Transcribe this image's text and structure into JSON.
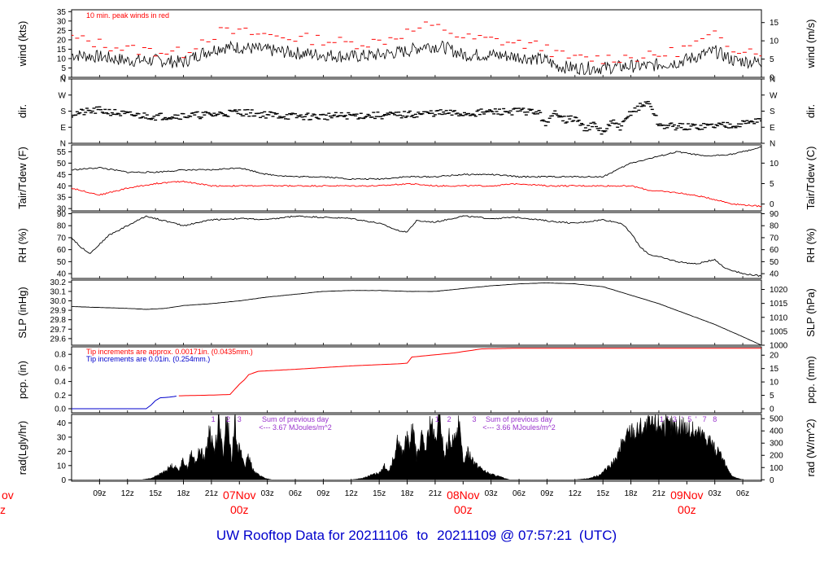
{
  "footer": {
    "prefix": "UW Rooftop Data for",
    "start": "20211106",
    "to_word": "to",
    "end": "20211109",
    "at_word": "@",
    "time": "07:57:21",
    "tz": "(UTC)"
  },
  "colors": {
    "frame": "#000000",
    "primary": "#000000",
    "red": "#ff0000",
    "blue": "#0000cc",
    "purple": "#9933cc"
  },
  "x_axis": {
    "tick_labels": [
      "09z",
      "12z",
      "15z",
      "18z",
      "21z",
      "03z",
      "06z",
      "09z",
      "12z",
      "15z",
      "18z",
      "21z",
      "03z",
      "06z",
      "09z",
      "12z",
      "15z",
      "18z",
      "21z",
      "03z",
      "06z"
    ],
    "tick_hours": [
      3,
      6,
      9,
      12,
      15,
      21,
      24,
      27,
      30,
      33,
      36,
      39,
      45,
      48,
      51,
      54,
      57,
      60,
      63,
      69,
      72
    ],
    "day_labels": [
      {
        "date": "07Nov",
        "z": "00z",
        "hour": 18
      },
      {
        "date": "08Nov",
        "z": "00z",
        "hour": 42
      },
      {
        "date": "09Nov",
        "z": "00z",
        "hour": 66
      }
    ],
    "left_day_partial": {
      "date": "ov",
      "z": "z"
    },
    "hour_range": [
      0,
      74
    ]
  },
  "chart_data": [
    {
      "type": "line",
      "id": "wind",
      "ylabel": "wind (kts)",
      "ylabel_right": "wind (m/s)",
      "annotation": "10 min. peak winds in red",
      "yticks_left": [
        0,
        5,
        10,
        15,
        20,
        25,
        30,
        35
      ],
      "yticks_right": [
        0,
        5,
        10,
        15
      ],
      "ylim": [
        0,
        36
      ],
      "right_scale": 0.514,
      "x_hours": [
        0,
        3,
        6,
        9,
        12,
        14,
        16,
        18,
        20,
        22,
        24,
        27,
        30,
        33,
        36,
        38,
        40,
        42,
        45,
        48,
        51,
        52,
        54,
        57,
        60,
        62,
        63,
        65,
        67,
        69,
        71,
        74
      ],
      "series": [
        {
          "name": "wind",
          "color": "#000000",
          "values": [
            12,
            11,
            9,
            9,
            8,
            13,
            16,
            16,
            15,
            14,
            13,
            12,
            11,
            12,
            14,
            17,
            16,
            12,
            12,
            11,
            9,
            6,
            5,
            5,
            6,
            6,
            7,
            8,
            11,
            14,
            9,
            8
          ]
        },
        {
          "name": "peak",
          "color": "#ff0000",
          "values": [
            21,
            18,
            15,
            14,
            13,
            20,
            24,
            24,
            23,
            22,
            21,
            20,
            18,
            19,
            24,
            27,
            26,
            21,
            20,
            18,
            16,
            12,
            10,
            10,
            11,
            11,
            12,
            14,
            18,
            22,
            16,
            14
          ]
        }
      ]
    },
    {
      "type": "scatter",
      "id": "dir",
      "ylabel": "dir.",
      "ylabel_right": "dir.",
      "ytick_labels": [
        "N",
        "E",
        "S",
        "W",
        "N"
      ],
      "ytick_degrees": [
        0,
        90,
        180,
        270,
        360
      ],
      "ylim": [
        0,
        360
      ],
      "x_hours": [
        0,
        3,
        6,
        9,
        12,
        15,
        18,
        21,
        24,
        27,
        30,
        33,
        36,
        39,
        42,
        45,
        48,
        50,
        51,
        52,
        53,
        54,
        55,
        56,
        57,
        58,
        59,
        60,
        61,
        62,
        63,
        66,
        69,
        72,
        74
      ],
      "series": [
        {
          "name": "dir",
          "color": "#000000",
          "values": [
            165,
            185,
            160,
            150,
            155,
            160,
            175,
            160,
            150,
            150,
            155,
            155,
            160,
            170,
            165,
            175,
            180,
            175,
            105,
            180,
            130,
            140,
            85,
            100,
            60,
            115,
            90,
            175,
            205,
            230,
            100,
            90,
            100,
            110,
            135
          ]
        }
      ]
    },
    {
      "type": "line",
      "id": "temp",
      "ylabel": "Tair/Tdew (F)",
      "ylabel_right": "Tair/Tdew (C)",
      "yticks_left": [
        30,
        35,
        40,
        45,
        50,
        55
      ],
      "yticks_right": [
        0,
        5,
        10
      ],
      "ylim": [
        29,
        58
      ],
      "x_hours": [
        0,
        3,
        6,
        9,
        12,
        15,
        18,
        21,
        24,
        27,
        30,
        33,
        36,
        39,
        42,
        45,
        48,
        51,
        54,
        57,
        58,
        60,
        62,
        65,
        68,
        71,
        74
      ],
      "series": [
        {
          "name": "Tair",
          "color": "#000000",
          "values": [
            47,
            48,
            46,
            46,
            47,
            47,
            48,
            45,
            44,
            44,
            43,
            43,
            44,
            44,
            45,
            45,
            44,
            44,
            44,
            44,
            46,
            50,
            52,
            55,
            53,
            54,
            57
          ]
        },
        {
          "name": "Tdew",
          "color": "#ff0000",
          "values": [
            39,
            36,
            39,
            41,
            42,
            40,
            40,
            40,
            40,
            40,
            40,
            40,
            41,
            40,
            40,
            40,
            41,
            40,
            40,
            40,
            40,
            40,
            38,
            37,
            35,
            32,
            31
          ]
        }
      ]
    },
    {
      "type": "line",
      "id": "rh",
      "ylabel": "RH (%)",
      "ylabel_right": "RH (%)",
      "yticks_left": [
        40,
        50,
        60,
        70,
        80,
        90
      ],
      "yticks_right": [
        40,
        50,
        60,
        70,
        80,
        90
      ],
      "ylim": [
        36,
        91
      ],
      "x_hours": [
        0,
        1,
        2,
        4,
        6,
        8,
        10,
        12,
        15,
        18,
        21,
        24,
        27,
        30,
        33,
        35,
        36,
        37,
        39,
        42,
        45,
        48,
        51,
        54,
        57,
        59,
        60,
        61,
        62,
        63,
        65,
        67,
        69,
        70,
        72,
        74
      ],
      "series": [
        {
          "name": "RH",
          "color": "#000000",
          "values": [
            70,
            62,
            57,
            72,
            80,
            88,
            84,
            80,
            85,
            86,
            85,
            88,
            87,
            86,
            82,
            76,
            75,
            84,
            83,
            88,
            86,
            87,
            84,
            82,
            85,
            82,
            74,
            62,
            56,
            54,
            50,
            48,
            52,
            45,
            40,
            38
          ]
        }
      ]
    },
    {
      "type": "line",
      "id": "slp",
      "ylabel": "SLP (inHg)",
      "ylabel_right": "SLP (hPa)",
      "yticks_left": [
        "29.6",
        "29.7",
        "29.8",
        "29.9",
        "30.0",
        "30.1",
        "30.2"
      ],
      "ytick_values_left": [
        29.6,
        29.7,
        29.8,
        29.9,
        30.0,
        30.1,
        30.2
      ],
      "yticks_right": [
        "1000",
        "1005",
        "1010",
        "1015",
        "1020"
      ],
      "ytick_values_right_hpa": [
        1000,
        1005,
        1010,
        1015,
        1020
      ],
      "ylim": [
        29.53,
        30.22
      ],
      "x_hours": [
        0,
        3,
        6,
        8,
        10,
        12,
        15,
        18,
        21,
        24,
        27,
        30,
        33,
        36,
        39,
        42,
        45,
        48,
        51,
        54,
        57,
        60,
        63,
        66,
        69,
        72,
        74
      ],
      "series": [
        {
          "name": "SLP",
          "color": "#000000",
          "values": [
            29.94,
            29.93,
            29.92,
            29.91,
            29.92,
            29.95,
            29.97,
            30.0,
            30.04,
            30.07,
            30.1,
            30.11,
            30.11,
            30.1,
            30.1,
            30.13,
            30.16,
            30.18,
            30.19,
            30.18,
            30.15,
            30.06,
            29.97,
            29.86,
            29.75,
            29.62,
            29.53
          ]
        }
      ]
    },
    {
      "type": "area",
      "id": "pcp",
      "ylabel": "pcp. (in)",
      "ylabel_right": "pcp. (mm)",
      "legend": [
        "Tip increments are approx. 0.00171in. (0.0435mm.)",
        "Tip increments are 0.01in. (0.254mm.)"
      ],
      "yticks_left": [
        "0.0",
        "0.2",
        "0.4",
        "0.6",
        "0.8"
      ],
      "ytick_values_left": [
        0,
        0.2,
        0.4,
        0.6,
        0.8
      ],
      "yticks_right": [
        0,
        5,
        10,
        15,
        20
      ],
      "ylim": [
        -0.06,
        0.91
      ],
      "x_hours": [
        0,
        8,
        8.5,
        9,
        9.5,
        10.5,
        11.5,
        15,
        17,
        18,
        18.5,
        19,
        20,
        24,
        30,
        35,
        36,
        36.5,
        41,
        44,
        48,
        54,
        60,
        66,
        70,
        74
      ],
      "series": [
        {
          "name": "tip_fine",
          "color": "#ff0000",
          "values": [
            null,
            null,
            null,
            null,
            null,
            null,
            0.19,
            0.2,
            0.21,
            0.36,
            0.42,
            0.5,
            0.55,
            0.58,
            0.63,
            0.66,
            0.67,
            0.76,
            0.82,
            0.88,
            0.89,
            0.89,
            0.89,
            0.89,
            0.89,
            0.89
          ]
        },
        {
          "name": "tip_0.01",
          "color": "#0000cc",
          "values": [
            0,
            0,
            0.05,
            0.12,
            0.16,
            0.17,
            0.19,
            null,
            null,
            null,
            null,
            null,
            null,
            null,
            null,
            null,
            null,
            null,
            null,
            null,
            null,
            null,
            null,
            null,
            null,
            null
          ]
        }
      ]
    },
    {
      "type": "area",
      "id": "rad",
      "ylabel": "rad(Lgly/hr)",
      "ylabel_right": "rad (W/m^2)",
      "yticks_left": [
        0,
        10,
        20,
        30,
        40
      ],
      "yticks_right": [
        0,
        100,
        200,
        300,
        400,
        500
      ],
      "ylim": [
        -1,
        46
      ],
      "annotations": [
        {
          "text": "Sum of previous day",
          "hour": 24
        },
        {
          "text": "<--- 3.67 MJoules/m^2",
          "hour": 24
        },
        {
          "text": "Sum of previous day",
          "hour": 48
        },
        {
          "text": "<--- 3.66 MJoules/m^2",
          "hour": 48
        }
      ],
      "markers": [
        {
          "label": "1",
          "hour": 15.2
        },
        {
          "label": "2",
          "hour": 16.8
        },
        {
          "label": "3",
          "hour": 18.0
        },
        {
          "label": "1",
          "hour": 39.2
        },
        {
          "label": "2",
          "hour": 40.5
        },
        {
          "label": "3",
          "hour": 43.2
        },
        {
          "label": "1",
          "hour": 63.3
        },
        {
          "label": "'",
          "hour": 64.0
        },
        {
          "label": "3",
          "hour": 64.7
        },
        {
          "label": "'",
          "hour": 65.5
        },
        {
          "label": "5",
          "hour": 66.3
        },
        {
          "label": "'",
          "hour": 67.0
        },
        {
          "label": "7",
          "hour": 67.9
        },
        {
          "label": "8",
          "hour": 69.0
        }
      ],
      "x_hours": [
        0,
        6,
        7.5,
        8.5,
        9.2,
        10,
        10.8,
        11.5,
        12,
        12.4,
        12.8,
        13.3,
        13.8,
        14.3,
        14.8,
        15.3,
        15.8,
        16.3,
        16.6,
        16.9,
        17.2,
        17.5,
        17.8,
        18.2,
        18.6,
        19.0,
        19.4,
        19.8,
        20.2,
        20.8,
        21.5,
        24,
        30,
        31.2,
        32,
        33,
        33.5,
        34,
        34.5,
        35,
        35.5,
        36,
        36.3,
        36.6,
        37,
        37.5,
        38,
        38.5,
        39,
        39.5,
        40,
        40.5,
        41,
        41.5,
        42,
        42.5,
        43,
        43.5,
        44,
        44.5,
        45,
        45.5,
        46,
        46.5,
        47,
        48,
        54,
        55.5,
        56.5,
        57.5,
        58.5,
        59,
        59.5,
        60,
        60.5,
        61,
        61.5,
        62,
        62.5,
        63,
        63.5,
        64,
        64.5,
        65,
        65.5,
        66,
        66.5,
        67,
        67.5,
        68,
        68.5,
        69,
        69.5,
        70,
        70.5,
        71,
        72,
        74
      ],
      "series": [
        {
          "name": "rad",
          "color": "#000000",
          "values": [
            0,
            0,
            0,
            1,
            3,
            6,
            10,
            7,
            14,
            8,
            18,
            12,
            22,
            15,
            36,
            20,
            42,
            14,
            45,
            30,
            12,
            44,
            26,
            18,
            10,
            16,
            8,
            5,
            3,
            1,
            0,
            0,
            0,
            1,
            3,
            5,
            10,
            6,
            14,
            28,
            18,
            30,
            22,
            40,
            15,
            30,
            20,
            42,
            25,
            45,
            15,
            30,
            25,
            42,
            12,
            20,
            15,
            10,
            8,
            5,
            4,
            3,
            2,
            1,
            0,
            0,
            0,
            1,
            3,
            8,
            15,
            25,
            30,
            35,
            33,
            37,
            36,
            38,
            38,
            40,
            39,
            37,
            38,
            35,
            39,
            36,
            34,
            33,
            32,
            30,
            28,
            22,
            18,
            12,
            6,
            2,
            0,
            0
          ]
        }
      ]
    }
  ]
}
